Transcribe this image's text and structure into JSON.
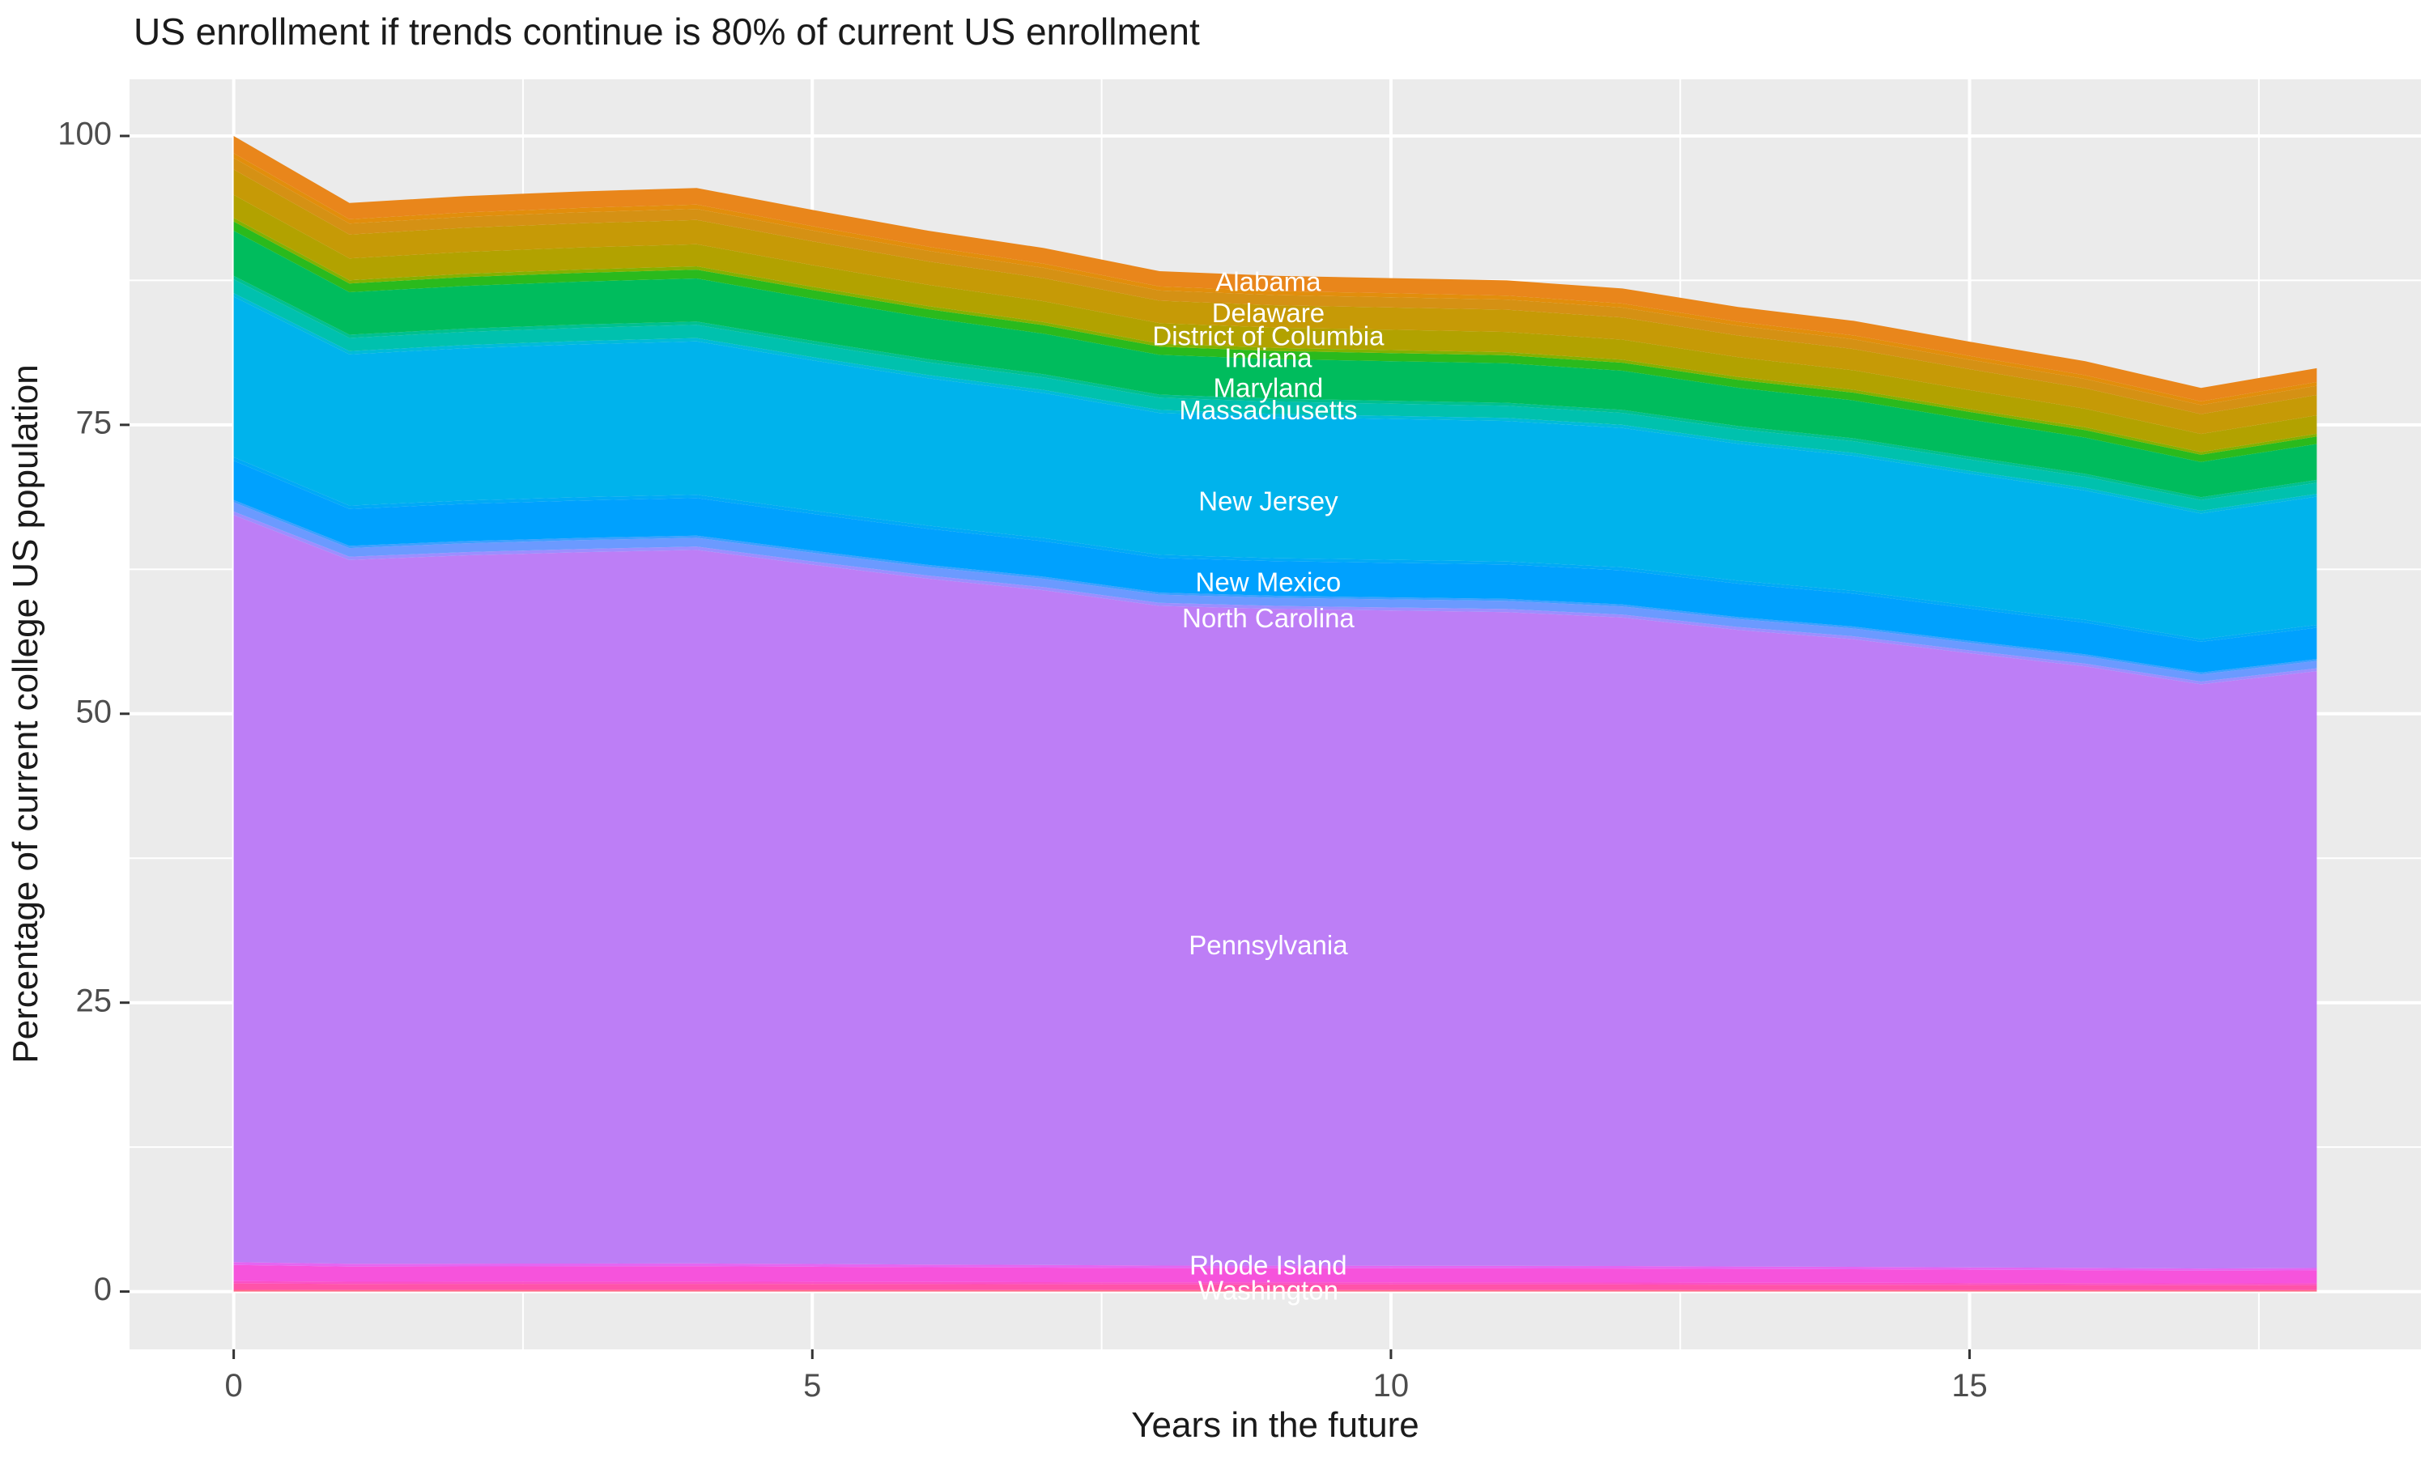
{
  "chart_data": {
    "type": "area",
    "stacked": true,
    "title": "US enrollment if trends continue is 80% of current US enrollment",
    "xlabel": "Years in the future",
    "ylabel": "Percentage of current college US population",
    "x": [
      0,
      1,
      2,
      3,
      4,
      5,
      6,
      7,
      8,
      9,
      10,
      11,
      12,
      13,
      14,
      15,
      16,
      17,
      18
    ],
    "totals": [
      100,
      94.2,
      94.8,
      95.2,
      95.5,
      93.6,
      91.8,
      90.3,
      88.3,
      87.9,
      87.7,
      87.5,
      86.8,
      85.2,
      84.0,
      82.2,
      80.5,
      78.2,
      79.9
    ],
    "series": [
      {
        "key": "wyoming-group",
        "label": "",
        "share_pct": 0.15,
        "color": "#FF6A86"
      },
      {
        "key": "washington",
        "label": "Washington",
        "share_pct": 0.55,
        "color": "#FF53A9"
      },
      {
        "key": "vermont-virginia-group",
        "label": "",
        "share_pct": 0.2,
        "color": "#FB50C4"
      },
      {
        "key": "rhode-island",
        "label": "Rhode Island",
        "share_pct": 1.4,
        "color": "#F653DC"
      },
      {
        "key": "south-carolina-group",
        "label": "",
        "share_pct": 0.25,
        "color": "#E565F2"
      },
      {
        "key": "pennsylvania",
        "label": "Pennsylvania",
        "share_pct": 64.65,
        "color": "#BD7EF6"
      },
      {
        "key": "oregon-group",
        "label": "",
        "share_pct": 0.3,
        "color": "#9D8EFF"
      },
      {
        "key": "north-carolina",
        "label": "North Carolina",
        "share_pct": 0.8,
        "color": "#6B9AFF"
      },
      {
        "key": "north-dakota-group",
        "label": "",
        "share_pct": 0.2,
        "color": "#3D9FFF"
      },
      {
        "key": "new-mexico",
        "label": "New Mexico",
        "share_pct": 3.4,
        "color": "#00A1FE"
      },
      {
        "key": "new-york-group",
        "label": "",
        "share_pct": 0.3,
        "color": "#00AAF6"
      },
      {
        "key": "new-jersey",
        "label": "New Jersey",
        "share_pct": 13.9,
        "color": "#00B3EC"
      },
      {
        "key": "new-hampshire-group",
        "label": "",
        "share_pct": 0.3,
        "color": "#00BBD9"
      },
      {
        "key": "massachusetts",
        "label": "Massachusetts",
        "share_pct": 1.2,
        "color": "#00C1AE"
      },
      {
        "key": "michigan-group",
        "label": "",
        "share_pct": 0.3,
        "color": "#00C090"
      },
      {
        "key": "maryland",
        "label": "Maryland",
        "share_pct": 3.9,
        "color": "#00BC5D"
      },
      {
        "key": "indiana",
        "label": "Indiana",
        "share_pct": 0.8,
        "color": "#2ABA1D"
      },
      {
        "key": "kansas-group",
        "label": "",
        "share_pct": 0.3,
        "color": "#84B100"
      },
      {
        "key": "district-of-columbia",
        "label": "District of Columbia",
        "share_pct": 2.0,
        "color": "#B2A200"
      },
      {
        "key": "delaware",
        "label": "Delaware",
        "share_pct": 2.2,
        "color": "#C69A06"
      },
      {
        "key": "connecticut-group",
        "label": "",
        "share_pct": 1.0,
        "color": "#D59114"
      },
      {
        "key": "arizona-group",
        "label": "",
        "share_pct": 0.4,
        "color": "#E28E0C"
      },
      {
        "key": "alabama",
        "label": "Alabama",
        "share_pct": 1.5,
        "color": "#E9861B"
      }
    ],
    "area_labels": [
      {
        "text": "Alabama",
        "x": 8.94,
        "y": 87.2
      },
      {
        "text": "Delaware",
        "x": 8.94,
        "y": 84.5
      },
      {
        "text": "District of Columbia",
        "x": 8.94,
        "y": 82.5
      },
      {
        "text": "Indiana",
        "x": 8.94,
        "y": 80.6
      },
      {
        "text": "Maryland",
        "x": 8.94,
        "y": 78.0
      },
      {
        "text": "Massachusetts",
        "x": 8.94,
        "y": 76.1
      },
      {
        "text": "New Jersey",
        "x": 8.94,
        "y": 68.2
      },
      {
        "text": "New Mexico",
        "x": 8.94,
        "y": 61.2
      },
      {
        "text": "North Carolina",
        "x": 8.94,
        "y": 58.1
      },
      {
        "text": "Pennsylvania",
        "x": 8.94,
        "y": 29.8
      },
      {
        "text": "Rhode Island",
        "x": 8.94,
        "y": 2.1
      },
      {
        "text": "Washington",
        "x": 8.94,
        "y": -0.1
      }
    ],
    "x_ticks": [
      {
        "value": 0,
        "label": "0"
      },
      {
        "value": 5,
        "label": "5"
      },
      {
        "value": 10,
        "label": "10"
      },
      {
        "value": 15,
        "label": "15"
      }
    ],
    "y_ticks": [
      {
        "value": 0,
        "label": "0"
      },
      {
        "value": 25,
        "label": "25"
      },
      {
        "value": 50,
        "label": "50"
      },
      {
        "value": 75,
        "label": "75"
      },
      {
        "value": 100,
        "label": "100"
      }
    ],
    "x_minor": [
      2.5,
      7.5,
      12.5,
      17.5
    ],
    "y_minor": [
      12.5,
      37.5,
      62.5,
      87.5
    ],
    "xlim": [
      -0.9,
      18.9
    ],
    "ylim": [
      -5,
      104.9
    ],
    "grid": true,
    "legend_position": "none",
    "colors": {
      "panel_background": "#EBEBEB",
      "grid_major": "#FFFFFF",
      "grid_minor": "#FFFFFF",
      "tick_mark": "#333333",
      "tick_text": "#4D4D4D",
      "title_text": "#1A1A1A",
      "area_label_text": "#FFFFFF",
      "page_background": "#FFFFFF"
    }
  }
}
